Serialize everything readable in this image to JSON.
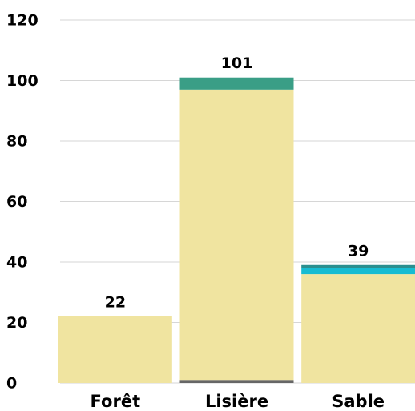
{
  "chart_data": {
    "type": "stacked-bar",
    "categories": [
      "Forêt",
      "Lisière",
      "Sable"
    ],
    "series": [
      {
        "color": "#666666",
        "values": [
          0,
          1,
          0
        ]
      },
      {
        "color": "#f0e4a0",
        "values": [
          22,
          96,
          36
        ]
      },
      {
        "color": "#3a9e86",
        "values": [
          0,
          4,
          0
        ]
      },
      {
        "color": "#17bcd2",
        "values": [
          0,
          0,
          2
        ]
      },
      {
        "color": "#2b8f8f",
        "values": [
          0,
          0,
          1
        ]
      }
    ],
    "totals": [
      22,
      101,
      39
    ],
    "ylim": [
      0,
      120
    ],
    "yticks": [
      0,
      20,
      40,
      60,
      80,
      100,
      120
    ],
    "grid": true
  }
}
